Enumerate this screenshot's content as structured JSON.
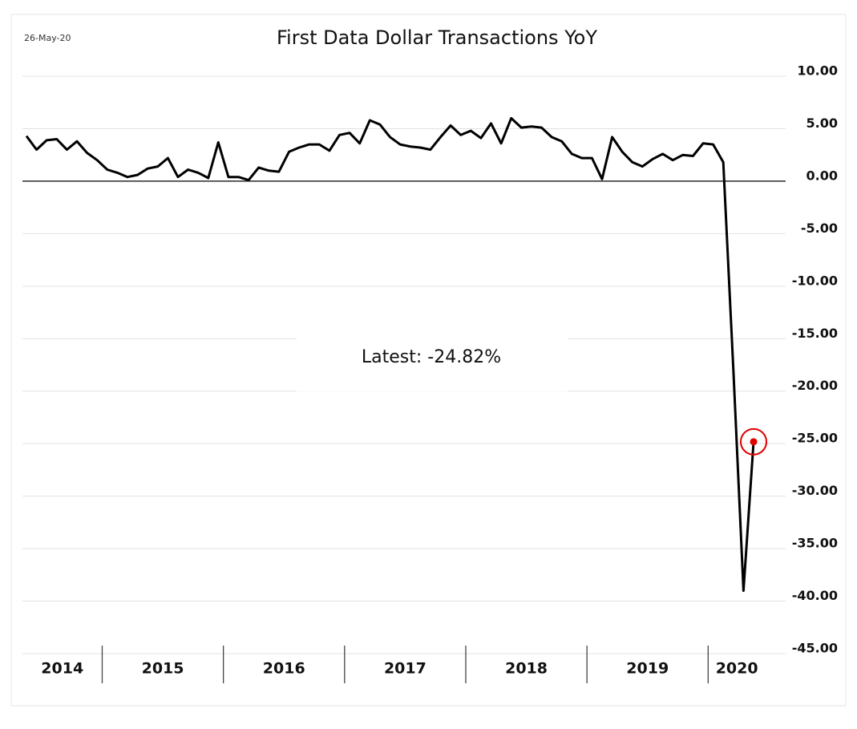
{
  "chart_data": {
    "type": "line",
    "title": "First Data Dollar Transactions YoY",
    "date_label": "26-May-20",
    "annotation": "Latest:  -24.82%",
    "year_labels": [
      "2014",
      "2015",
      "2016",
      "2017",
      "2018",
      "2019",
      "2020"
    ],
    "values": [
      4.3,
      3.0,
      3.9,
      4.0,
      3.0,
      3.8,
      2.7,
      2.0,
      1.1,
      0.8,
      0.4,
      0.6,
      1.2,
      1.4,
      2.2,
      0.4,
      1.1,
      0.8,
      0.3,
      3.7,
      0.4,
      0.4,
      0.1,
      1.3,
      1.0,
      0.9,
      2.8,
      3.2,
      3.5,
      3.5,
      2.9,
      4.4,
      4.6,
      3.6,
      5.8,
      5.4,
      4.2,
      3.5,
      3.3,
      3.2,
      3.0,
      4.2,
      5.3,
      4.4,
      4.8,
      4.1,
      5.5,
      3.6,
      6.0,
      5.1,
      5.2,
      5.1,
      4.2,
      3.8,
      2.6,
      2.2,
      2.2,
      0.2,
      4.2,
      2.8,
      1.8,
      1.4,
      2.1,
      2.6,
      2.0,
      2.5,
      2.4,
      3.6,
      3.5,
      1.8,
      -18,
      -39,
      -24.82
    ],
    "color": "#000000",
    "highlight_color": "#e00000",
    "ylim": [
      -45,
      10
    ],
    "yticks": [
      {
        "value": 10,
        "label": "10.00"
      },
      {
        "value": 5,
        "label": "5.00"
      },
      {
        "value": 0,
        "label": "0.00"
      },
      {
        "value": -5,
        "label": "-5.00"
      },
      {
        "value": -10,
        "label": "-10.00"
      },
      {
        "value": -15,
        "label": "-15.00"
      },
      {
        "value": -20,
        "label": "-20.00"
      },
      {
        "value": -25,
        "label": "-25.00"
      },
      {
        "value": -30,
        "label": "-30.00"
      },
      {
        "value": -35,
        "label": "-35.00"
      },
      {
        "value": -40,
        "label": "-40.00"
      },
      {
        "value": -45,
        "label": "-45.00"
      }
    ],
    "grid": true
  }
}
